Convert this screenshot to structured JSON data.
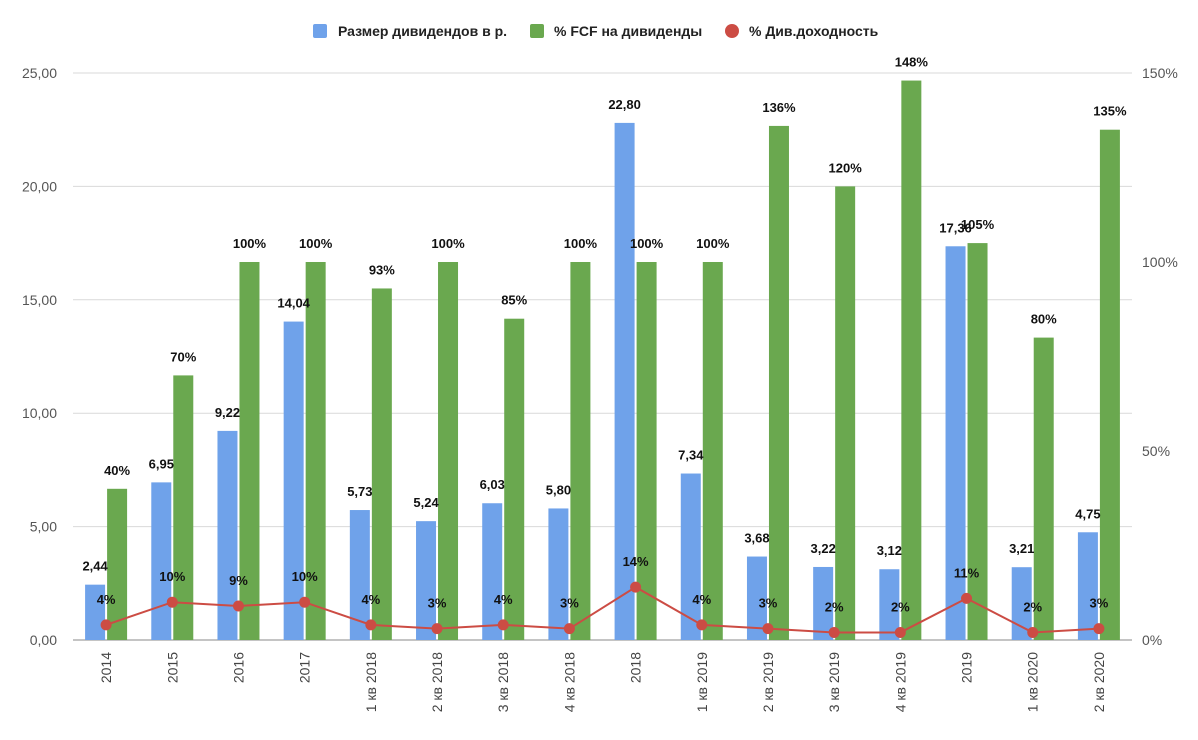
{
  "chart_data": {
    "type": "bar",
    "categories": [
      "2014",
      "2015",
      "2016",
      "2017",
      "1 кв 2018",
      "2 кв 2018",
      "3 кв 2018",
      "4 кв 2018",
      "2018",
      "1 кв 2019",
      "2 кв 2019",
      "3 кв 2019",
      "4 кв 2019",
      "2019",
      "1 кв 2020",
      "2 кв 2020"
    ],
    "series": [
      {
        "name": "Размер дивидендов в р.",
        "type": "bar",
        "axis": "left",
        "color": "#6fa2ea",
        "values": [
          2.44,
          6.95,
          9.22,
          14.04,
          5.73,
          5.24,
          6.03,
          5.8,
          22.8,
          7.34,
          3.68,
          3.22,
          3.12,
          17.36,
          3.21,
          4.75
        ],
        "labels": [
          "2,44",
          "6,95",
          "9,22",
          "14,04",
          "5,73",
          "5,24",
          "6,03",
          "5,80",
          "22,80",
          "7,34",
          "3,68",
          "3,22",
          "3,12",
          "17,36",
          "3,21",
          "4,75"
        ]
      },
      {
        "name": "% FCF на дивиденды",
        "type": "bar",
        "axis": "right",
        "color": "#6aa84f",
        "values": [
          40,
          70,
          100,
          100,
          93,
          100,
          85,
          100,
          100,
          100,
          136,
          120,
          148,
          105,
          80,
          135
        ],
        "labels": [
          "40%",
          "70%",
          "100%",
          "100%",
          "93%",
          "100%",
          "85%",
          "100%",
          "100%",
          "100%",
          "136%",
          "120%",
          "148%",
          "105%",
          "80%",
          "135%"
        ]
      },
      {
        "name": "% Див.доходность",
        "type": "line",
        "axis": "right",
        "color": "#cc4c44",
        "values": [
          4,
          10,
          9,
          10,
          4,
          3,
          4,
          3,
          14,
          4,
          3,
          2,
          2,
          11,
          2,
          3
        ],
        "labels": [
          "4%",
          "10%",
          "9%",
          "10%",
          "4%",
          "3%",
          "4%",
          "3%",
          "14%",
          "4%",
          "3%",
          "2%",
          "2%",
          "11%",
          "2%",
          "3%"
        ]
      }
    ],
    "left_axis": {
      "ylim": [
        0,
        25
      ],
      "ticks": [
        0,
        5,
        10,
        15,
        20,
        25
      ],
      "tick_labels": [
        "0,00",
        "5,00",
        "10,00",
        "15,00",
        "20,00",
        "25,00"
      ]
    },
    "right_axis": {
      "ylim": [
        0,
        150
      ],
      "ticks": [
        0,
        50,
        100,
        150
      ],
      "tick_labels": [
        "0%",
        "50%",
        "100%",
        "150%"
      ]
    },
    "grid": true,
    "legend_position": "top-center"
  }
}
